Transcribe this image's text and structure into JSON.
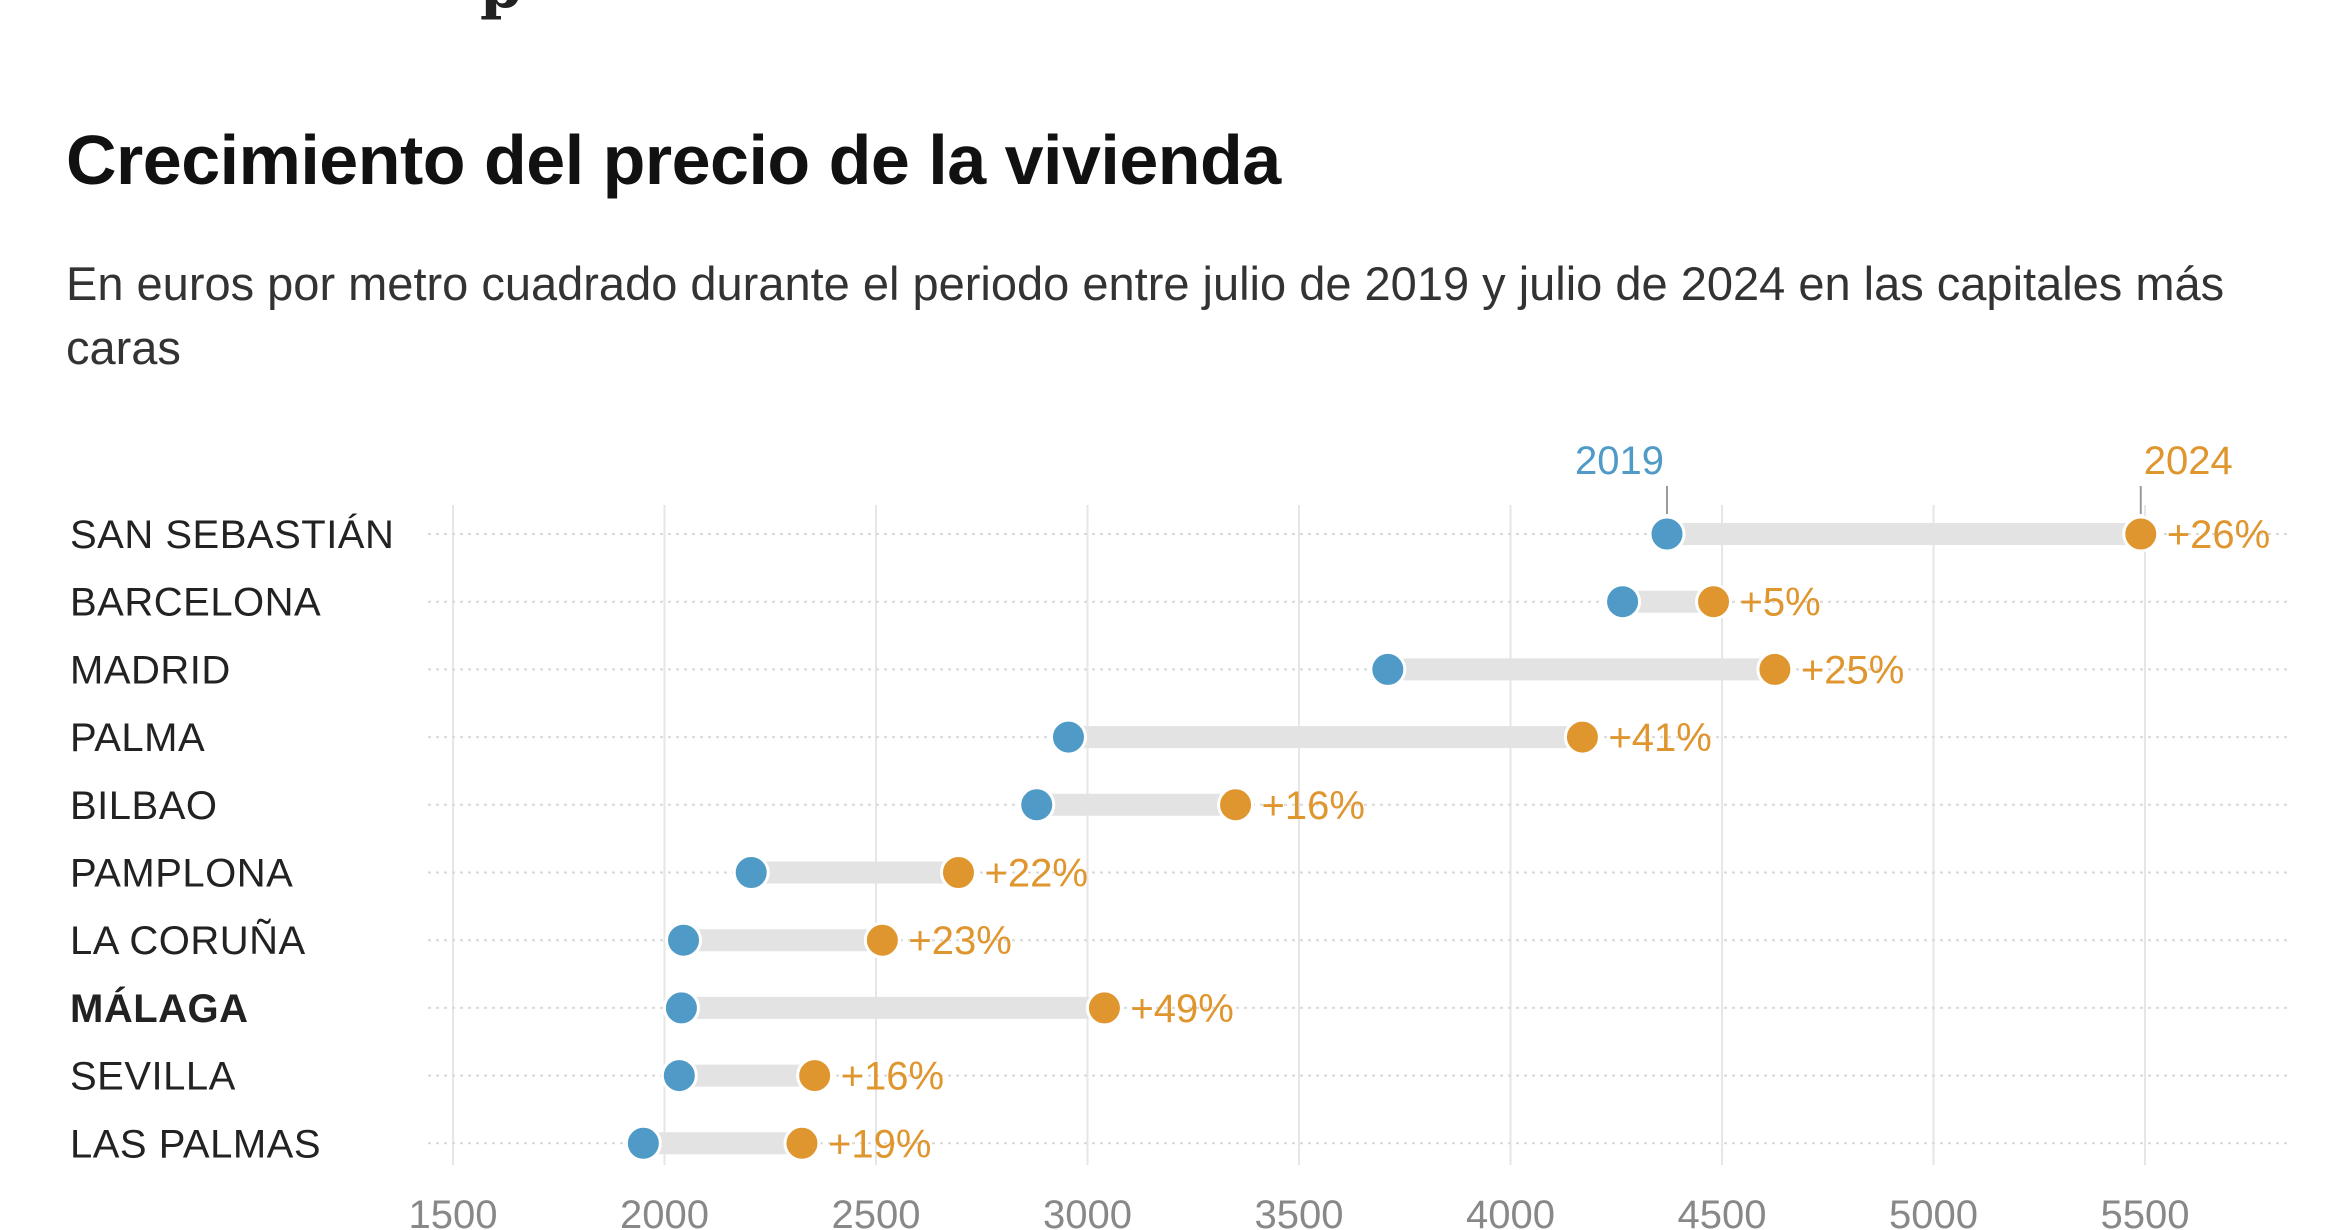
{
  "header": {
    "title": "Crecimiento del precio de la vivienda",
    "subtitle": "En euros por metro cuadrado durante el periodo entre julio de 2019 y julio de 2024 en las capitales más caras"
  },
  "colors": {
    "y2019": "#4f9ac6",
    "y2024": "#e0962f",
    "connector": "#e3e3e3",
    "grid": "#e6e6e6"
  },
  "chart_data": {
    "type": "dumbbell",
    "title": "Crecimiento del precio de la vivienda",
    "subtitle": "En euros por metro cuadrado durante el periodo entre julio de 2019 y julio de 2024 en las capitales más caras",
    "xlabel": "",
    "ylabel": "",
    "xlim": [
      1500,
      5800
    ],
    "x_ticks": [
      1500,
      2000,
      2500,
      3000,
      3500,
      4000,
      4500,
      5000,
      5500
    ],
    "x_tick_labels": [
      "1500",
      "2000",
      "2500",
      "3000",
      "3500",
      "4000",
      "4500",
      "5000",
      "5500"
    ],
    "legend": {
      "start_label": "2019",
      "end_label": "2024",
      "anchor_category": "SAN SEBASTIÁN"
    },
    "categories": [
      "SAN SEBASTIÁN",
      "BARCELONA",
      "MADRID",
      "PALMA",
      "BILBAO",
      "PAMPLONA",
      "LA CORUÑA",
      "MÁLAGA",
      "SEVILLA",
      "LAS PALMAS"
    ],
    "highlighted": [
      "MÁLAGA"
    ],
    "series": [
      {
        "name": "2019",
        "values": [
          4370,
          4265,
          3710,
          2955,
          2880,
          2205,
          2045,
          2040,
          2035,
          1950
        ]
      },
      {
        "name": "2024",
        "values": [
          5490,
          4480,
          4625,
          4170,
          3350,
          2695,
          2515,
          3040,
          2355,
          2325
        ]
      }
    ],
    "change_labels": [
      "+26%",
      "+5%",
      "+25%",
      "+41%",
      "+16%",
      "+22%",
      "+23%",
      "+49%",
      "+16%",
      "+19%"
    ]
  }
}
